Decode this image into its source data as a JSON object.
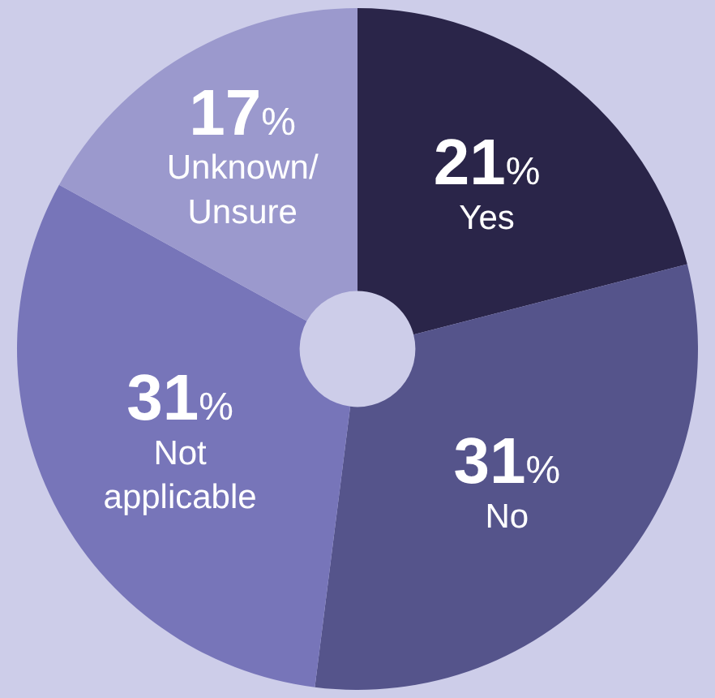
{
  "chart_data": {
    "type": "donut",
    "categories": [
      "Yes",
      "No",
      "Not applicable",
      "Unknown/ Unsure"
    ],
    "values": [
      21,
      31,
      31,
      17
    ],
    "value_labels": [
      "21%",
      "31%",
      "31%",
      "17%"
    ],
    "colors": [
      "#2a2549",
      "#55548b",
      "#7775b9",
      "#9b99cd"
    ],
    "legend": false
  }
}
